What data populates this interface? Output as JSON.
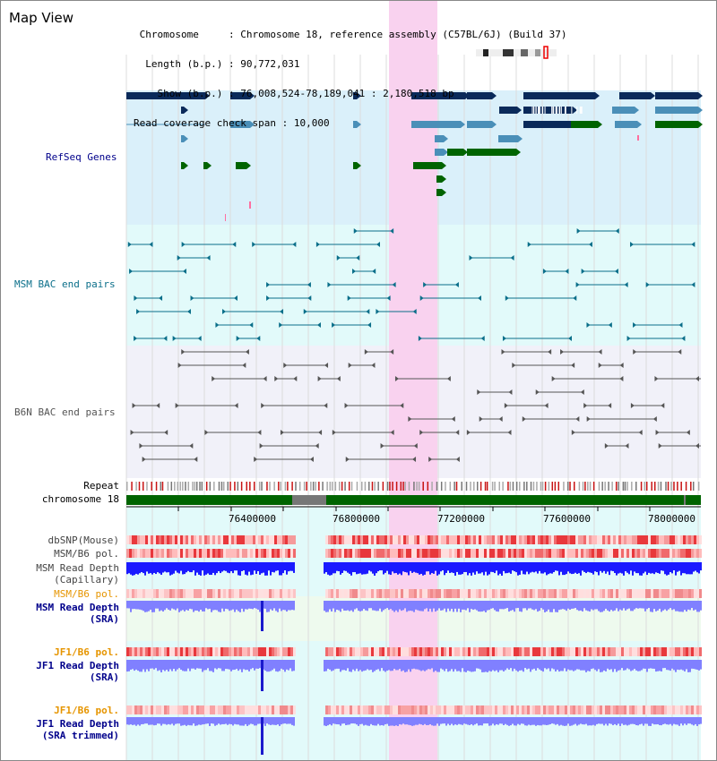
{
  "view": {
    "title": "Map View",
    "info": {
      "chromosome_label": "Chromosome",
      "chromosome_value": "Chromosome 18, reference assembly (C57BL/6J) (Build 37)",
      "length_label": "Length (b.p.)",
      "length_value": "90,772,031",
      "show_label": "Show (b.p.)",
      "show_value": "76,008,524-78,189,041 : 2,180,518 bp",
      "coverage_label": "Read coverage check span",
      "coverage_value": "10,000"
    }
  },
  "tracks": {
    "refseq": {
      "label": "RefSeq Genes",
      "color": "#00008b"
    },
    "msm_bac": {
      "label": "MSM BAC end pairs",
      "color": "#0b6f8a"
    },
    "b6n_bac": {
      "label": "B6N BAC end pairs",
      "color": "#555555"
    },
    "repeat": {
      "label": "Repeat"
    },
    "chromosome": {
      "label": "chromosome 18"
    },
    "dbsnp": {
      "label": "dbSNP(Mouse)",
      "color": "#444444"
    },
    "msm_b6_pol1": {
      "label": "MSM/B6 pol.",
      "color": "#444444"
    },
    "msm_depth_cap": {
      "label_1": "MSM Read Depth",
      "label_2": "(Capillary)",
      "color": "#444444"
    },
    "msm_b6_pol2": {
      "label": "MSM/B6 pol.",
      "color": "#e69500"
    },
    "msm_depth_sra": {
      "label_1": "MSM Read Depth",
      "label_2": "(SRA)",
      "color": "#00008b"
    },
    "jf1_b6_pol1": {
      "label": "JF1/B6 pol.",
      "color": "#e69500"
    },
    "jf1_depth_sra": {
      "label_1": "JF1 Read Depth",
      "label_2": "(SRA)",
      "color": "#00008b"
    },
    "jf1_b6_pol2": {
      "label": "JF1/B6 pol.",
      "color": "#e69500"
    },
    "jf1_depth_trim": {
      "label_1": "JF1 Read Depth",
      "label_2": "(SRA trimmed)",
      "color": "#00008b"
    }
  },
  "axis": {
    "ticks": [
      "76400000",
      "76800000",
      "77200000",
      "77600000",
      "78000000"
    ]
  },
  "colors": {
    "refseq_dark": "#0a2a5a",
    "refseq_mid": "#4a8fb8",
    "refseq_green": "#006400",
    "highlight": "#f9d2ef",
    "dbsnp_red": "#e8383c",
    "depth_blue": "#1a1aff",
    "depth_light": "#8080ff"
  }
}
